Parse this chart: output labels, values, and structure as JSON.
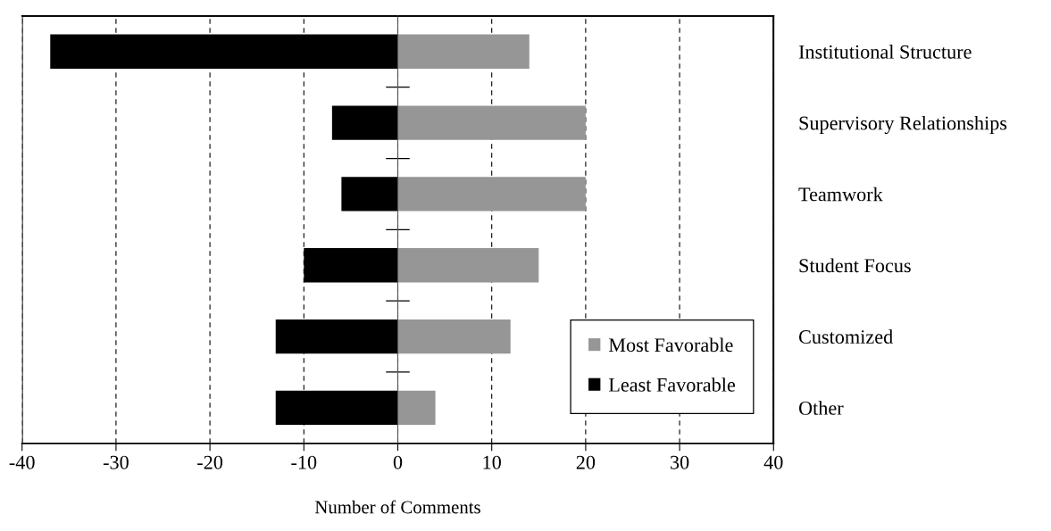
{
  "chart_data": {
    "type": "bar",
    "orientation": "horizontal",
    "stacked": true,
    "xlabel": "Number of Comments",
    "categories": [
      "Institutional Structure",
      "Supervisory Relationships",
      "Teamwork",
      "Student Focus",
      "Customized",
      "Other"
    ],
    "series": [
      {
        "name": "Most Favorable",
        "color": "#969696",
        "values": [
          14,
          20,
          20,
          15,
          12,
          4
        ]
      },
      {
        "name": "Least Favorable",
        "color": "#000000",
        "values": [
          -37,
          -7,
          -6,
          -10,
          -13,
          -13
        ]
      }
    ],
    "xlim": [
      -40,
      40
    ],
    "xticks": [
      {
        "value": -40,
        "label": "-40"
      },
      {
        "value": -30,
        "label": "-30"
      },
      {
        "value": -20,
        "label": "-20"
      },
      {
        "value": -10,
        "label": "-10"
      },
      0,
      10,
      20,
      30,
      40
    ],
    "grid": "x",
    "legend": "bottom right"
  }
}
